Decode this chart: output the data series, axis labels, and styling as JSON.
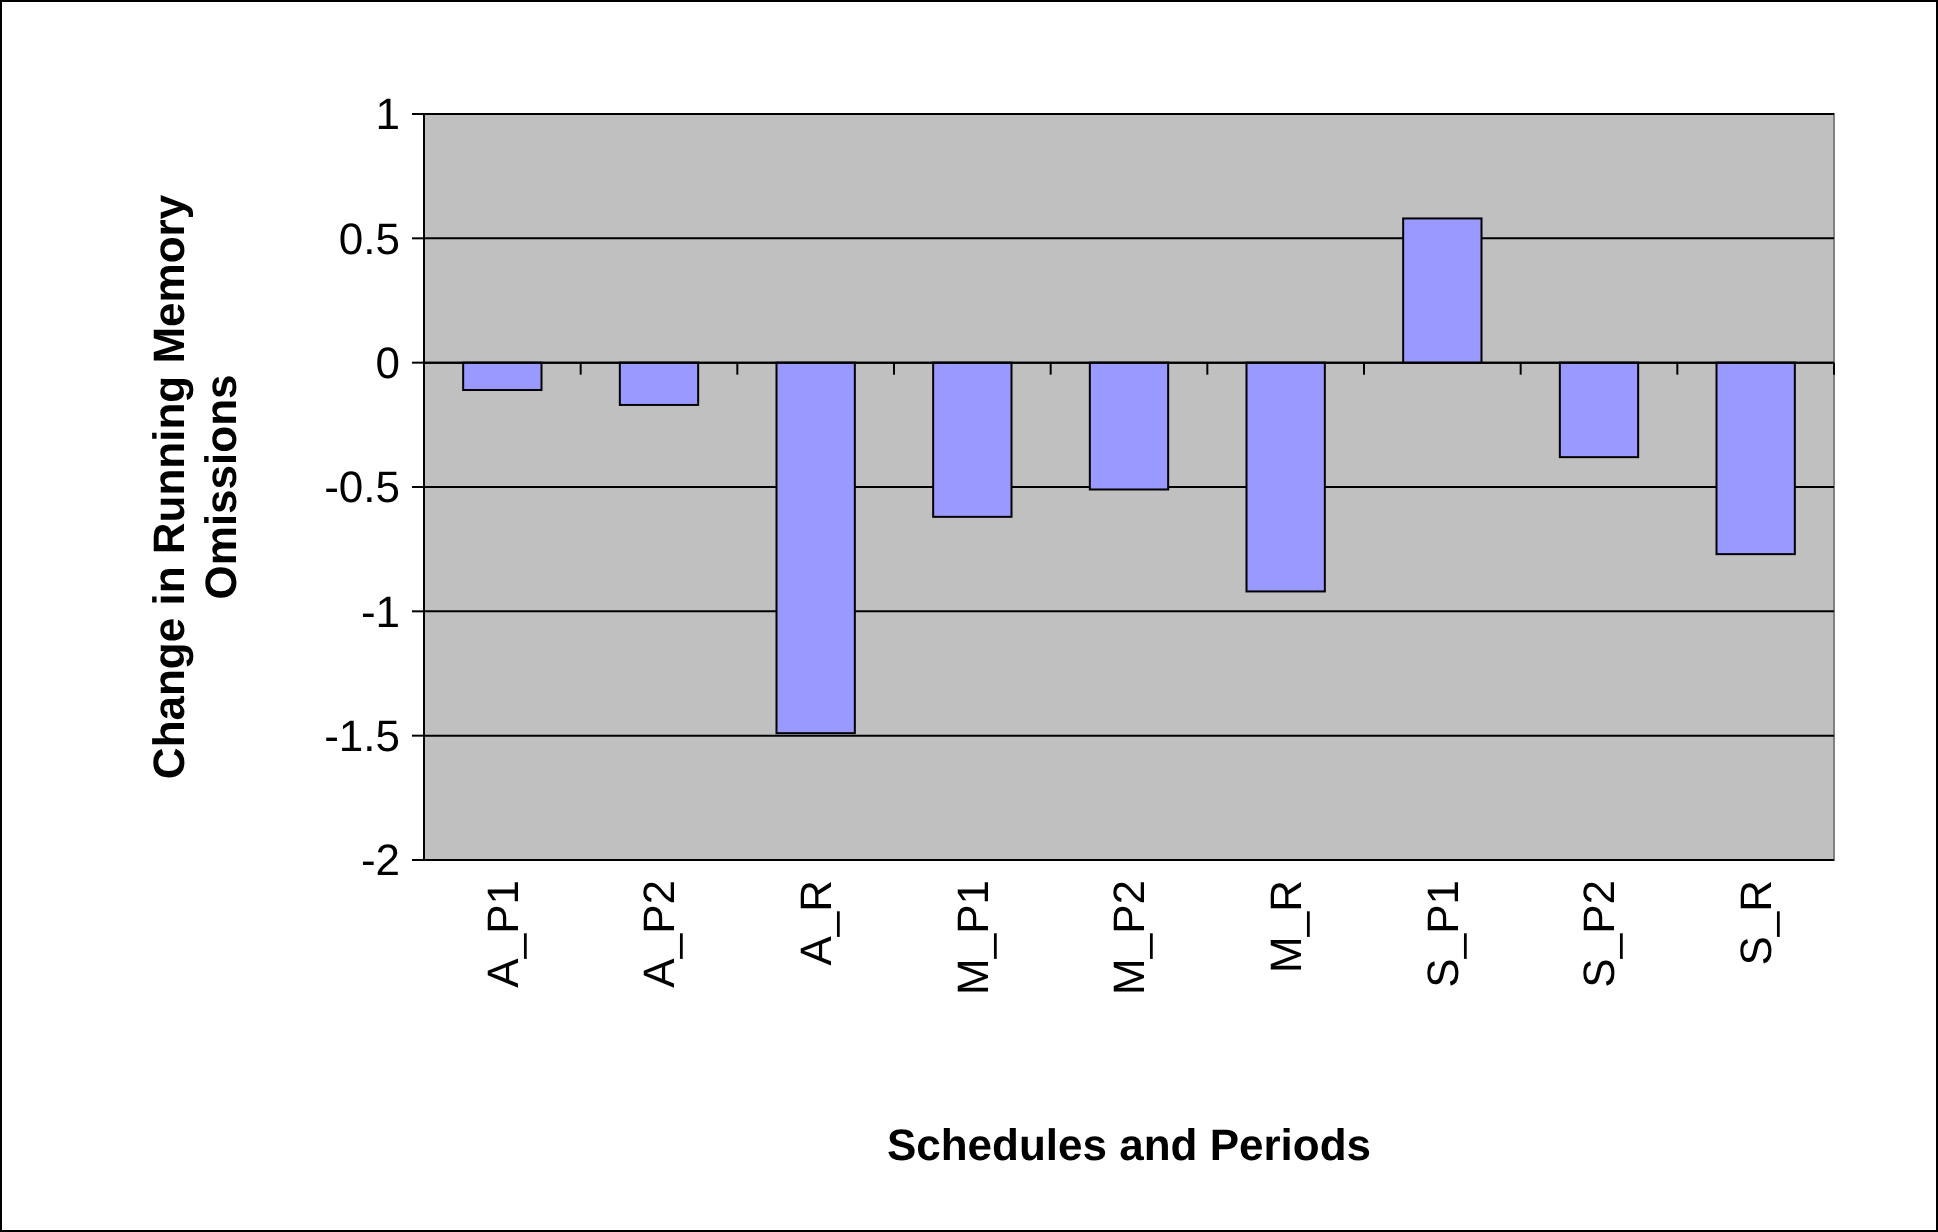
{
  "chart_data": {
    "type": "bar",
    "xlabel": "Schedules and Periods",
    "ylabel": "Change in Running Memory Omissions",
    "categories": [
      "A_P1",
      "A_P2",
      "A_R",
      "M_P1",
      "M_P2",
      "M_R",
      "S_P1",
      "S_P2",
      "S_R"
    ],
    "values": [
      -0.11,
      -0.17,
      -1.49,
      -0.62,
      -0.51,
      -0.92,
      0.58,
      -0.38,
      -0.77
    ],
    "color": "#9999ff",
    "ylim": [
      -2,
      1
    ],
    "yticks": [
      -2,
      -1.5,
      -1,
      -0.5,
      0,
      0.5,
      1
    ],
    "grid": "y"
  }
}
